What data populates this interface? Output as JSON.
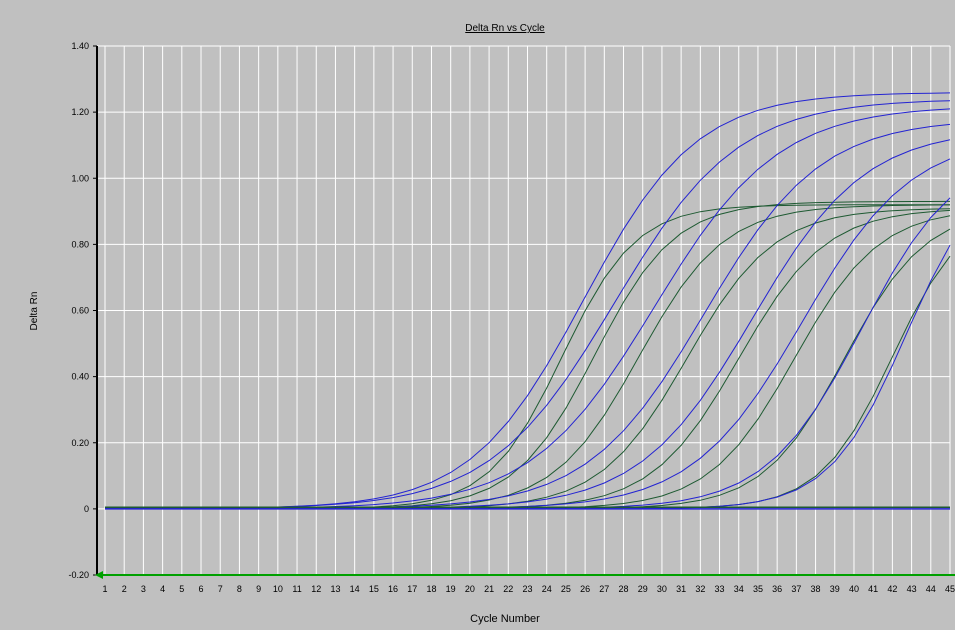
{
  "chart_data": {
    "type": "line",
    "title": "Delta Rn vs Cycle",
    "xlabel": "Cycle Number",
    "ylabel": "Delta Rn",
    "x": [
      1,
      2,
      3,
      4,
      5,
      6,
      7,
      8,
      9,
      10,
      11,
      12,
      13,
      14,
      15,
      16,
      17,
      18,
      19,
      20,
      21,
      22,
      23,
      24,
      25,
      26,
      27,
      28,
      29,
      30,
      31,
      32,
      33,
      34,
      35,
      36,
      37,
      38,
      39,
      40,
      41,
      42,
      43,
      44,
      45
    ],
    "xlim": [
      1,
      45
    ],
    "ylim": [
      -0.2,
      1.4
    ],
    "yticks": [
      -0.2,
      0,
      0.2,
      0.4,
      0.6,
      0.8,
      1.0,
      1.2,
      1.4
    ],
    "ytick_labels": [
      "-0.20",
      "0",
      "0.20",
      "0.40",
      "0.60",
      "0.80",
      "1.00",
      "1.20",
      "1.40"
    ],
    "grid": true,
    "colors": {
      "background": "#c0c0c0",
      "plot_background": "#c0c0c0",
      "grid": "#ffffff",
      "axis": "#000000",
      "blue_series": "#2323d2",
      "green_series": "#1e5a32",
      "baseline": "#00a000"
    },
    "series": [
      {
        "color": "blue",
        "ct": 25.9,
        "plateau": 1.26,
        "slope": 0.34
      },
      {
        "color": "green",
        "ct": 24.8,
        "plateau": 0.92,
        "slope": 0.52
      },
      {
        "color": "blue",
        "ct": 27.5,
        "plateau": 1.24,
        "slope": 0.31
      },
      {
        "color": "green",
        "ct": 26.5,
        "plateau": 0.93,
        "slope": 0.48
      },
      {
        "color": "blue",
        "ct": 29.6,
        "plateau": 1.22,
        "slope": 0.31
      },
      {
        "color": "green",
        "ct": 28.8,
        "plateau": 0.92,
        "slope": 0.45
      },
      {
        "color": "blue",
        "ct": 32.2,
        "plateau": 1.18,
        "slope": 0.33
      },
      {
        "color": "green",
        "ct": 31.3,
        "plateau": 0.91,
        "slope": 0.44
      },
      {
        "color": "blue",
        "ct": 34.7,
        "plateau": 1.15,
        "slope": 0.34
      },
      {
        "color": "green",
        "ct": 34.0,
        "plateau": 0.91,
        "slope": 0.44
      },
      {
        "color": "blue",
        "ct": 37.3,
        "plateau": 1.13,
        "slope": 0.35
      },
      {
        "color": "green",
        "ct": 36.9,
        "plateau": 0.91,
        "slope": 0.45
      },
      {
        "color": "green",
        "ct": 39.5,
        "plateau": 0.91,
        "slope": 0.47
      },
      {
        "color": "blue",
        "ct": 40.4,
        "plateau": 1.09,
        "slope": 0.4
      },
      {
        "color": "green",
        "ct": 42.0,
        "plateau": 0.92,
        "slope": 0.53
      },
      {
        "color": "blue",
        "ct": 42.7,
        "plateau": 1.05,
        "slope": 0.5
      }
    ],
    "flat_series": [
      {
        "color": "blue",
        "value": 0.0
      },
      {
        "color": "green",
        "value": 0.005
      }
    ]
  }
}
